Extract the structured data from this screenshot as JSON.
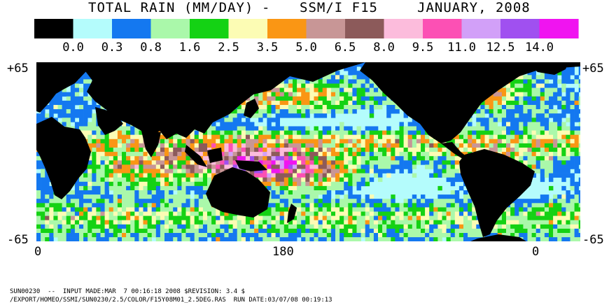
{
  "header": {
    "title_left": "TOTAL RAIN (MM/DAY)",
    "dash": "-",
    "sensor": "SSM/I F15",
    "period": "JANUARY, 2008"
  },
  "legend": {
    "colors": [
      "#000000",
      "#b4fcfc",
      "#1478f0",
      "#aaf8aa",
      "#14d214",
      "#fcfcb4",
      "#fa9614",
      "#c89696",
      "#8c5a5a",
      "#fcbcdc",
      "#fc50b4",
      "#d2a0f8",
      "#a050f0",
      "#f014f0"
    ],
    "thresholds": [
      "0.0",
      "0.3",
      "0.8",
      "1.6",
      "2.5",
      "3.5",
      "5.0",
      "6.5",
      "8.0",
      "9.5",
      "11.0",
      "12.5",
      "14.0"
    ]
  },
  "map": {
    "lat_top_left": "+65",
    "lat_top_right": "+65",
    "lat_bottom_left": "-65",
    "lat_bottom_right": "-65",
    "lon_labels": [
      "0",
      "180",
      "0"
    ],
    "land_color": "#000000",
    "ocean_base_color": "#b4fcfc"
  },
  "footer": {
    "line1": "SUN00230  --  INPUT MADE:MAR  7 00:16:18 2008 $REVISION: 3.4 $",
    "line2": "/EXPORT/HOMEO/SSMI/SUN0230/2.5/COLOR/F15Y08M01_2.5DEG.RAS  RUN DATE:03/07/08 00:19:13"
  }
}
